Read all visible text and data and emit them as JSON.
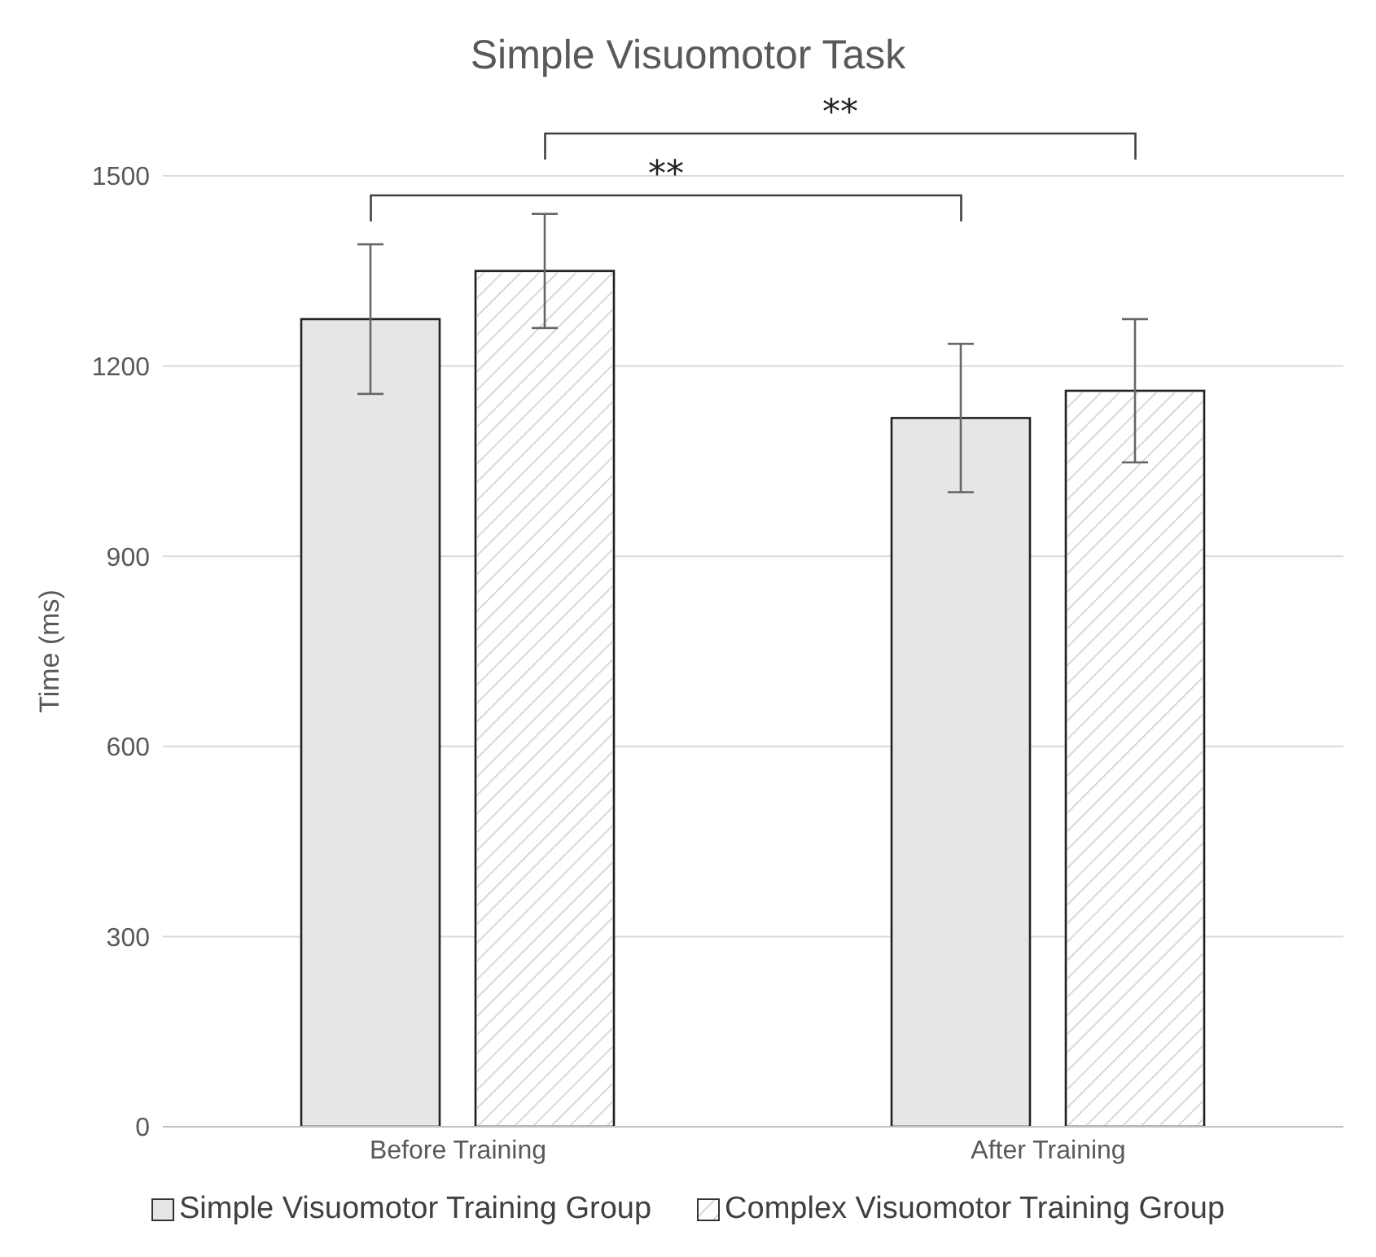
{
  "chart_data": {
    "type": "bar",
    "title": "Simple Visuomotor Task",
    "ylabel": "Time (ms)",
    "categories": [
      "Before Training",
      "After Training"
    ],
    "series": [
      {
        "name": "Simple Visuomotor Training Group",
        "color": "#e6e6e6",
        "values": [
          1274,
          1118
        ],
        "errors": [
          118,
          117
        ]
      },
      {
        "name": "Complex Visuomotor Training Group",
        "color": "#f2f2f2",
        "values": [
          1350,
          1161
        ],
        "errors": [
          90,
          113
        ]
      }
    ],
    "ylim": [
      0,
      1500
    ],
    "yticks": [
      0,
      300,
      600,
      900,
      1200,
      1500
    ],
    "grid": "y",
    "legend": "bottom",
    "annotations": [
      "**",
      "**"
    ]
  }
}
